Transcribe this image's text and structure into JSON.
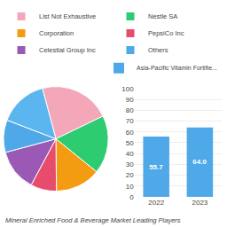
{
  "chart_data": [
    {
      "type": "pie",
      "values": [
        22,
        18,
        14,
        8,
        13,
        10,
        15
      ],
      "categories": [
        "List Not Exhaustive",
        "Nestle SA",
        "Corporation",
        "PepsiCo Inc",
        "Celestial Group Inc",
        "Others",
        null
      ],
      "colors": [
        "#f4a7b9",
        "#2ecc71",
        "#f39c12",
        "#e74c6c",
        "#9b59b6",
        "#4fa8e8",
        "#5bb5ef"
      ],
      "subtitle": "Mineral Enriched Food & Beverage Market Leading Players"
    },
    {
      "type": "bar",
      "categories": [
        "2022",
        "2023"
      ],
      "series": [
        {
          "name": "Asia-Pacific Vitamin Fortifie...",
          "color": "#4fa8e8",
          "values": [
            55.7,
            64.0
          ],
          "value_labels": [
            "55.7",
            "64.0"
          ]
        }
      ],
      "ylim": [
        0,
        100
      ],
      "yticks": [
        0,
        10,
        20,
        30,
        40,
        50,
        60,
        70,
        80,
        90,
        100
      ],
      "grid": true,
      "data_labels": true
    }
  ]
}
